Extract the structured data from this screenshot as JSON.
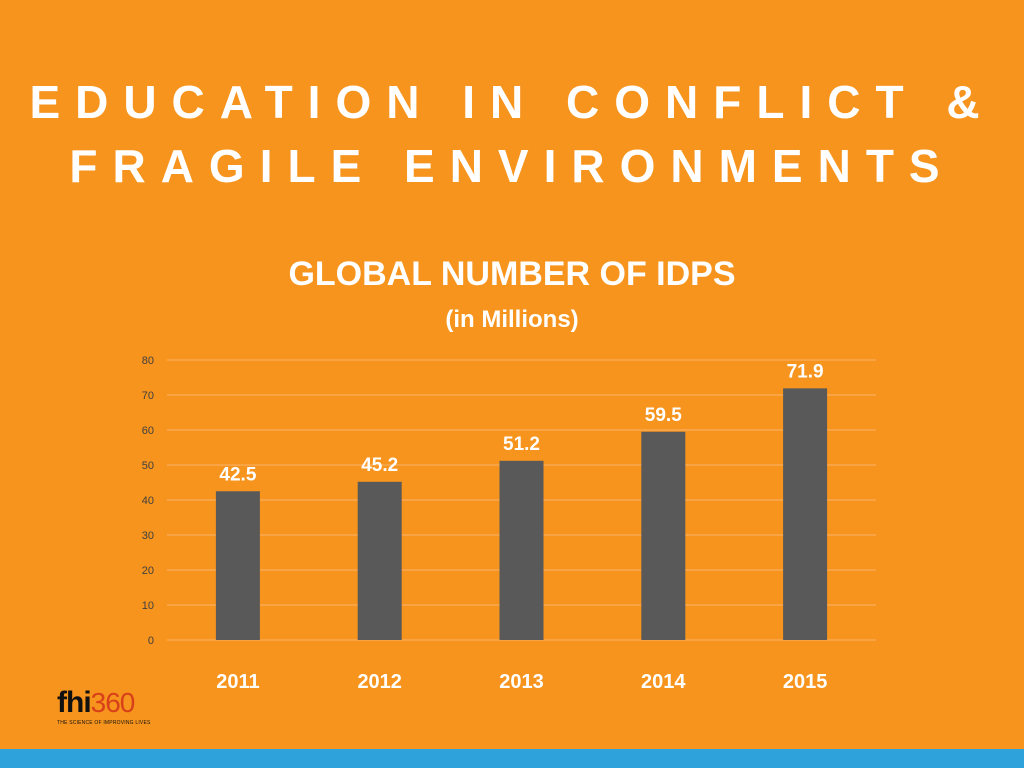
{
  "slide": {
    "title_line1": "EDUCATION IN CONFLICT &",
    "title_line2": "FRAGILE ENVIRONMENTS"
  },
  "chart_data": {
    "type": "bar",
    "title": "GLOBAL NUMBER OF IDPS",
    "subtitle": "(in Millions)",
    "categories": [
      "2011",
      "2012",
      "2013",
      "2014",
      "2015"
    ],
    "values": [
      42.5,
      45.2,
      51.2,
      59.5,
      71.9
    ],
    "data_labels": [
      "42.5",
      "45.2",
      "51.2",
      "59.5",
      "71.9"
    ],
    "ylim": [
      0,
      80
    ],
    "yticks": [
      0,
      10,
      20,
      30,
      40,
      50,
      60,
      70,
      80
    ],
    "grid": true,
    "legend": "none",
    "bar_color": "#595959",
    "grid_color": "#F9B46A"
  },
  "logo": {
    "brand_letters": "fhi",
    "brand_number": "360",
    "tagline": "THE SCIENCE OF IMPROVING LIVES"
  },
  "colors": {
    "background": "#F7941D",
    "footer_bar": "#2EA3DB",
    "text": "#FFFFFF"
  }
}
